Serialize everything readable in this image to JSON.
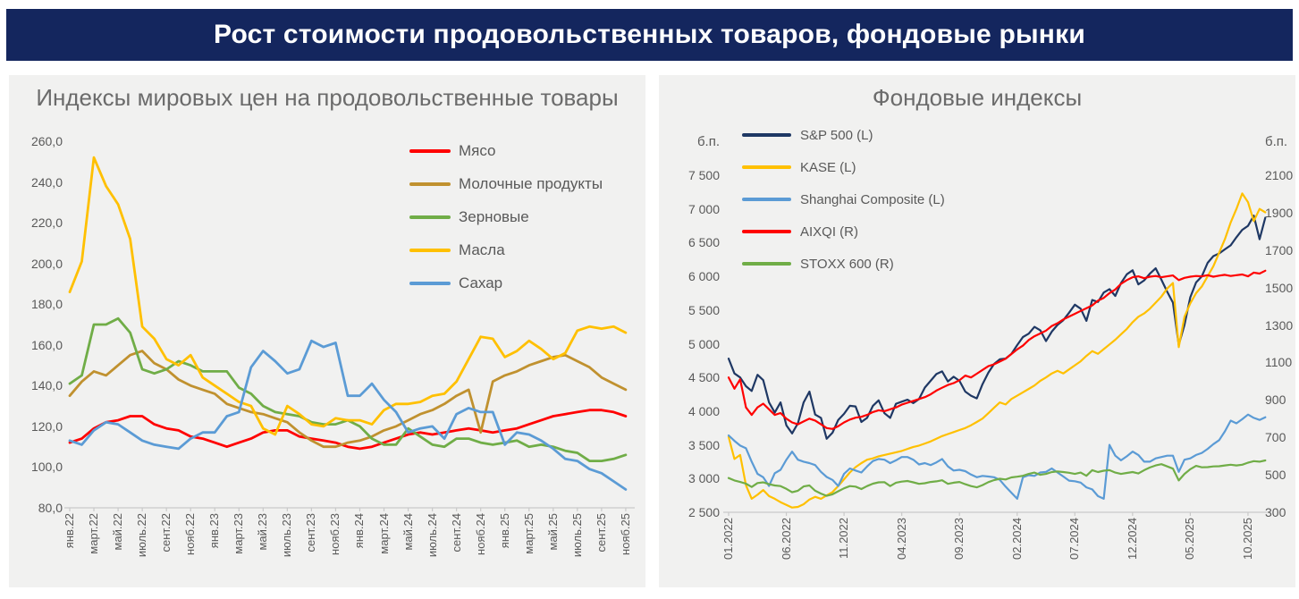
{
  "header": {
    "title": "Рост стоимости продовольственных товаров, фондовые рынки",
    "bg_color": "#14265E",
    "text_color": "#FFFFFF"
  },
  "chart_data": [
    {
      "id": "food",
      "type": "line",
      "title": "Индексы мировых цен на продовольственные товары",
      "x_start": "янв.22",
      "x_end": "нояб.25",
      "months": 47,
      "ylim": [
        80,
        260
      ],
      "ytick_step": 20,
      "y_tick_labels": [
        "260,0",
        "240,0",
        "220,0",
        "200,0",
        "180,0",
        "160,0",
        "140,0",
        "120,0",
        "100,0",
        "80,0"
      ],
      "x_tick_labels": [
        "янв.22",
        "март.22",
        "май.22",
        "июль.22",
        "сент.22",
        "нояб.22",
        "янв.23",
        "март.23",
        "май.23",
        "июль.23",
        "сент.23",
        "нояб.23",
        "янв.24",
        "март.24",
        "май.24",
        "июль.24",
        "сент.24",
        "нояб.24",
        "янв.25",
        "март.25",
        "май.25",
        "июль.25",
        "сент.25",
        "нояб.25"
      ],
      "grid": false,
      "legend_position": "inside-top-right",
      "series": [
        {
          "name": "Мясо",
          "color": "#FF0000",
          "values": [
            112,
            114,
            119,
            122,
            123,
            125,
            125,
            121,
            119,
            118,
            115,
            114,
            112,
            110,
            112,
            114,
            117,
            118,
            118,
            115,
            114,
            113,
            112,
            110,
            109,
            110,
            112,
            114,
            116,
            117,
            116,
            117,
            118,
            119,
            118,
            117,
            118,
            119,
            121,
            123,
            125,
            126,
            127,
            128,
            128,
            127,
            125
          ]
        },
        {
          "name": "Молочные продукты",
          "color": "#C0912F",
          "values": [
            135,
            142,
            147,
            145,
            150,
            155,
            157,
            151,
            148,
            143,
            140,
            138,
            136,
            131,
            129,
            127,
            126,
            124,
            122,
            117,
            113,
            110,
            110,
            112,
            113,
            115,
            118,
            120,
            123,
            126,
            128,
            131,
            135,
            138,
            117,
            142,
            145,
            147,
            150,
            152,
            154,
            155,
            152,
            149,
            144,
            141,
            138
          ]
        },
        {
          "name": "Зерновые",
          "color": "#70AD47",
          "values": [
            141,
            145,
            170,
            170,
            173,
            166,
            148,
            146,
            148,
            152,
            150,
            147,
            147,
            147,
            139,
            136,
            130,
            127,
            126,
            125,
            122,
            121,
            121,
            123,
            120,
            114,
            111,
            111,
            119,
            115,
            111,
            110,
            114,
            114,
            112,
            111,
            112,
            113,
            110,
            111,
            110,
            108,
            107,
            103,
            103,
            104,
            106
          ]
        },
        {
          "name": "Масла",
          "color": "#FFC000",
          "values": [
            186,
            201,
            252,
            238,
            229,
            212,
            169,
            163,
            153,
            150,
            155,
            144,
            140,
            136,
            132,
            130,
            119,
            116,
            130,
            126,
            121,
            120,
            124,
            123,
            123,
            121,
            128,
            131,
            131,
            132,
            135,
            136,
            142,
            153,
            164,
            163,
            154,
            157,
            162,
            158,
            153,
            156,
            167,
            169,
            168,
            169,
            166
          ]
        },
        {
          "name": "Сахар",
          "color": "#5B9BD5",
          "values": [
            113,
            111,
            118,
            122,
            121,
            117,
            113,
            111,
            110,
            109,
            114,
            117,
            117,
            125,
            127,
            149,
            157,
            152,
            146,
            148,
            162,
            159,
            161,
            135,
            135,
            141,
            133,
            127,
            117,
            119,
            120,
            114,
            126,
            129,
            127,
            127,
            111,
            117,
            116,
            113,
            109,
            104,
            103,
            99,
            97,
            93,
            89
          ]
        }
      ]
    },
    {
      "id": "stocks",
      "type": "line",
      "title": "Фондовые индексы",
      "axis_unit_left": "б.п.",
      "axis_unit_right": "б.п.",
      "points_per_month": 2,
      "months": 47,
      "ylim_left": [
        2500,
        7500
      ],
      "ylim_right": [
        300,
        2100
      ],
      "y_tick_labels_left": [
        "7 500",
        "7 000",
        "6 500",
        "6 000",
        "5 500",
        "5 000",
        "4 500",
        "4 000",
        "3 500",
        "3 000",
        "2 500"
      ],
      "y_tick_labels_right": [
        "2100",
        "1900",
        "1700",
        "1500",
        "1300",
        "1100",
        "900",
        "700",
        "500",
        "300"
      ],
      "x_tick_labels": [
        "01.2022",
        "06.2022",
        "11.2022",
        "04.2023",
        "09.2023",
        "02.2024",
        "07.2024",
        "12.2024",
        "05.2025",
        "10.2025"
      ],
      "grid": false,
      "legend_position": "inside-top-left",
      "series": [
        {
          "name": "S&P 500 (L)",
          "axis": "left",
          "color": "#1F3864",
          "values": [
            4780,
            4560,
            4500,
            4370,
            4300,
            4540,
            4460,
            4130,
            3980,
            4130,
            3790,
            3670,
            3820,
            4130,
            4290,
            3950,
            3900,
            3590,
            3680,
            3870,
            3960,
            4080,
            4070,
            3840,
            3900,
            4080,
            4160,
            3970,
            3900,
            4110,
            4140,
            4170,
            4120,
            4180,
            4350,
            4450,
            4550,
            4590,
            4440,
            4510,
            4450,
            4290,
            4230,
            4190,
            4400,
            4570,
            4700,
            4770,
            4780,
            4850,
            4980,
            5100,
            5150,
            5250,
            5200,
            5040,
            5180,
            5280,
            5350,
            5460,
            5580,
            5520,
            5340,
            5650,
            5620,
            5760,
            5810,
            5710,
            5900,
            6030,
            6090,
            5880,
            5940,
            6040,
            6120,
            5950,
            5770,
            5610,
            4983,
            5280,
            5690,
            5910,
            6000,
            6200,
            6300,
            6340,
            6400,
            6460,
            6580,
            6690,
            6750,
            6900,
            6550,
            6870
          ]
        },
        {
          "name": "KASE (L)",
          "axis": "left",
          "color": "#FFC000",
          "values": [
            3620,
            3290,
            3350,
            2900,
            2700,
            2760,
            2830,
            2740,
            2700,
            2650,
            2610,
            2570,
            2580,
            2620,
            2690,
            2730,
            2700,
            2750,
            2800,
            2890,
            2990,
            3090,
            3170,
            3230,
            3280,
            3300,
            3330,
            3350,
            3370,
            3390,
            3410,
            3440,
            3470,
            3490,
            3520,
            3550,
            3590,
            3630,
            3660,
            3690,
            3720,
            3750,
            3790,
            3840,
            3890,
            3970,
            4050,
            4130,
            4100,
            4180,
            4230,
            4280,
            4330,
            4380,
            4450,
            4500,
            4560,
            4600,
            4560,
            4620,
            4680,
            4740,
            4820,
            4890,
            4850,
            4920,
            4990,
            5060,
            5140,
            5220,
            5320,
            5400,
            5450,
            5520,
            5610,
            5700,
            5820,
            5900,
            4950,
            5400,
            5600,
            5750,
            5850,
            6000,
            6150,
            6350,
            6550,
            6800,
            7000,
            7230,
            7100,
            6820,
            7000,
            6950
          ]
        },
        {
          "name": "Shanghai Composite (L)",
          "axis": "left",
          "color": "#5B9BD5",
          "values": [
            3640,
            3560,
            3490,
            3450,
            3250,
            3070,
            3020,
            2890,
            3080,
            3130,
            3280,
            3400,
            3280,
            3250,
            3230,
            3200,
            3100,
            3024,
            2980,
            2890,
            3070,
            3150,
            3120,
            3090,
            3180,
            3260,
            3290,
            3280,
            3230,
            3270,
            3320,
            3320,
            3280,
            3210,
            3230,
            3200,
            3240,
            3290,
            3180,
            3120,
            3130,
            3110,
            3060,
            3020,
            3040,
            3030,
            3020,
            2980,
            2880,
            2790,
            2700,
            3020,
            3050,
            3040,
            3090,
            3100,
            3150,
            3090,
            3030,
            2970,
            2960,
            2940,
            2870,
            2840,
            2740,
            2700,
            3500,
            3340,
            3270,
            3330,
            3400,
            3350,
            3250,
            3250,
            3300,
            3320,
            3340,
            3340,
            3100,
            3280,
            3300,
            3350,
            3380,
            3440,
            3510,
            3570,
            3700,
            3860,
            3820,
            3880,
            3950,
            3900,
            3870,
            3910
          ]
        },
        {
          "name": "AIXQI (R)",
          "axis": "right",
          "color": "#FF0000",
          "values": [
            1020,
            960,
            1010,
            860,
            820,
            860,
            880,
            850,
            820,
            830,
            800,
            780,
            770,
            785,
            800,
            790,
            770,
            750,
            745,
            760,
            780,
            795,
            805,
            810,
            820,
            835,
            845,
            840,
            850,
            860,
            875,
            885,
            895,
            905,
            915,
            930,
            950,
            965,
            980,
            990,
            1005,
            1030,
            1020,
            1040,
            1060,
            1080,
            1090,
            1105,
            1120,
            1145,
            1170,
            1190,
            1220,
            1240,
            1255,
            1270,
            1295,
            1310,
            1330,
            1345,
            1360,
            1375,
            1390,
            1405,
            1430,
            1445,
            1470,
            1490,
            1520,
            1540,
            1555,
            1560,
            1550,
            1558,
            1562,
            1555,
            1560,
            1565,
            1540,
            1552,
            1558,
            1562,
            1560,
            1566,
            1558,
            1564,
            1568,
            1562,
            1566,
            1570,
            1560,
            1580,
            1575,
            1590
          ]
        },
        {
          "name": "STOXX 600 (R)",
          "axis": "right",
          "color": "#70AD47",
          "values": [
            483,
            470,
            462,
            453,
            435,
            456,
            460,
            450,
            443,
            440,
            425,
            407,
            415,
            438,
            443,
            415,
            400,
            388,
            396,
            412,
            428,
            440,
            437,
            424,
            440,
            453,
            460,
            461,
            440,
            458,
            464,
            467,
            460,
            452,
            455,
            462,
            465,
            471,
            452,
            458,
            462,
            450,
            440,
            433,
            445,
            461,
            472,
            479,
            475,
            486,
            490,
            495,
            505,
            512,
            500,
            505,
            515,
            518,
            515,
            511,
            505,
            512,
            495,
            525,
            515,
            522,
            525,
            512,
            505,
            510,
            515,
            507,
            525,
            539,
            550,
            557,
            545,
            533,
            470,
            505,
            530,
            548,
            540,
            541,
            545,
            546,
            550,
            554,
            550,
            554,
            565,
            573,
            570,
            577
          ]
        }
      ]
    }
  ]
}
